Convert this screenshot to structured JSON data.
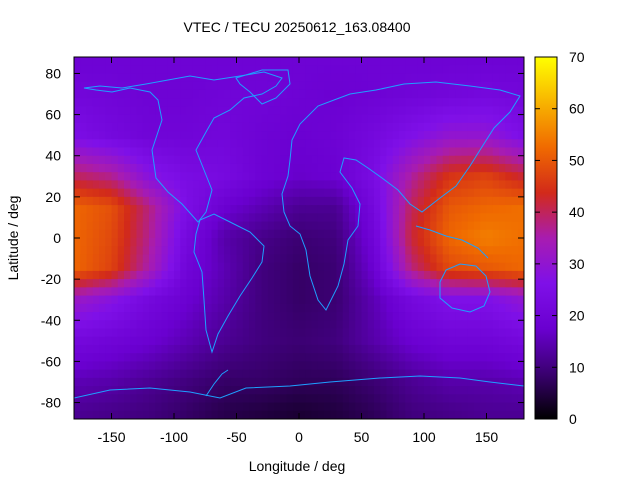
{
  "chart_data": {
    "type": "heatmap",
    "title": "VTEC / TECU 20250612_163.08400",
    "xlabel": "Longitude / deg",
    "ylabel": "Latitude / deg",
    "xlim": [
      -180,
      180
    ],
    "ylim": [
      -88,
      88
    ],
    "xticks": [
      -150,
      -100,
      -50,
      0,
      50,
      100,
      150
    ],
    "yticks": [
      -80,
      -60,
      -40,
      -20,
      0,
      20,
      40,
      60,
      80
    ],
    "colorbar": {
      "range": [
        0,
        70
      ],
      "ticks": [
        0,
        10,
        20,
        30,
        40,
        50,
        60,
        70
      ],
      "palette": [
        "#000000",
        "#3a0070",
        "#6a00d0",
        "#7f10e8",
        "#a81cb0",
        "#d22a1a",
        "#f06a00",
        "#f8b400",
        "#ffff00"
      ]
    },
    "grid": "none",
    "x": [
      -180,
      -150,
      -120,
      -90,
      -60,
      -30,
      0,
      30,
      60,
      90,
      120,
      150,
      180
    ],
    "y": [
      85,
      70,
      50,
      30,
      15,
      0,
      -15,
      -30,
      -50,
      -70,
      -85
    ],
    "z": [
      [
        19,
        19,
        19,
        19,
        19,
        19,
        19,
        19,
        19,
        19,
        19,
        19,
        19
      ],
      [
        21,
        20,
        19,
        19,
        20,
        20,
        19,
        18,
        19,
        20,
        21,
        22,
        21
      ],
      [
        25,
        22,
        20,
        20,
        21,
        19,
        18,
        19,
        22,
        26,
        30,
        30,
        25
      ],
      [
        40,
        37,
        28,
        24,
        23,
        19,
        17,
        18,
        24,
        36,
        45,
        47,
        42
      ],
      [
        52,
        49,
        38,
        25,
        18,
        15,
        12,
        12,
        22,
        40,
        50,
        52,
        53
      ],
      [
        52,
        48,
        37,
        22,
        14,
        11,
        9,
        10,
        20,
        42,
        52,
        55,
        53
      ],
      [
        52,
        47,
        35,
        20,
        15,
        10,
        8,
        9,
        18,
        38,
        48,
        50,
        52
      ],
      [
        32,
        28,
        22,
        18,
        14,
        10,
        8,
        9,
        15,
        22,
        26,
        26,
        30
      ],
      [
        22,
        20,
        18,
        15,
        12,
        10,
        9,
        10,
        14,
        18,
        20,
        20,
        22
      ],
      [
        15,
        14,
        12,
        10,
        8,
        8,
        7,
        7,
        9,
        12,
        14,
        14,
        15
      ],
      [
        12,
        11,
        10,
        8,
        6,
        5,
        4,
        5,
        7,
        10,
        11,
        12,
        12
      ]
    ]
  }
}
